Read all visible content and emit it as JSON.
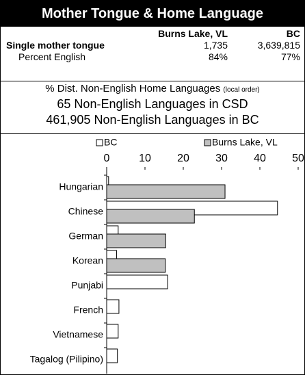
{
  "header": {
    "title": "Mother Tongue & Home Language"
  },
  "table": {
    "columns": [
      "Burns Lake, VL",
      "BC"
    ],
    "rows": [
      [
        "Single mother tongue",
        "1,735",
        "3,639,815"
      ],
      [
        "Percent English",
        "84%",
        "77%"
      ]
    ]
  },
  "summary": {
    "heading": "% Dist. Non-English Home Languages",
    "heading_note": "(local order)",
    "lines": [
      "65 Non-English Languages in CSD",
      "461,905 Non-English Languages in BC"
    ]
  },
  "chart_data": {
    "type": "bar",
    "orientation": "horizontal",
    "categories": [
      "Hungarian",
      "Chinese",
      "German",
      "Korean",
      "Punjabi",
      "French",
      "Vietnamese",
      "Tagalog (Pilipino)"
    ],
    "series": [
      {
        "name": "BC",
        "color": "#ffffff",
        "values": [
          0.5,
          44.6,
          3,
          2.6,
          15.9,
          3.2,
          3,
          2.8
        ]
      },
      {
        "name": "Burns Lake, VL",
        "color": "#c0c0c0",
        "values": [
          30.9,
          22.9,
          15.4,
          15.3,
          0,
          0,
          0,
          0
        ]
      }
    ],
    "xlim": [
      0,
      50
    ],
    "xticks": [
      0,
      10,
      20,
      30,
      40,
      50
    ],
    "legend": "top"
  }
}
